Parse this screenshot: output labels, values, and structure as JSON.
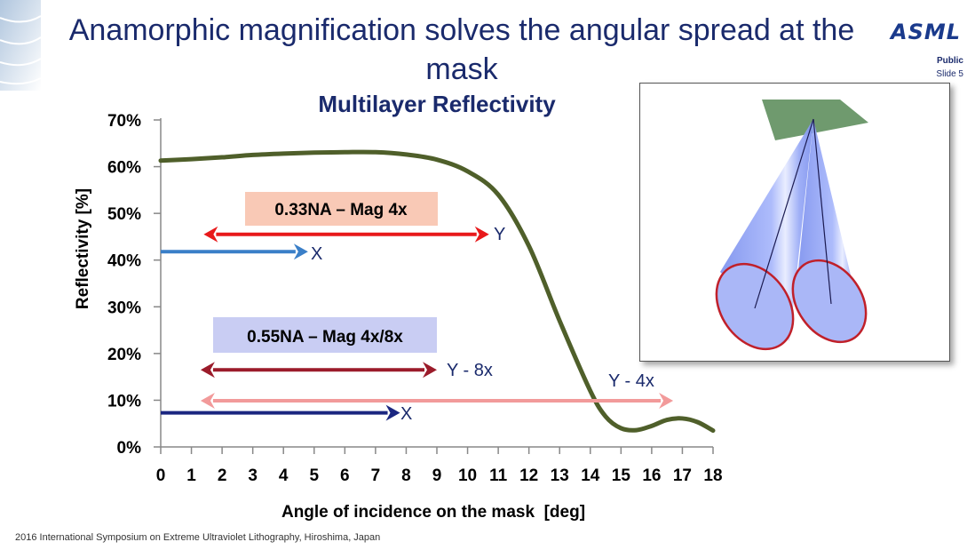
{
  "slide": {
    "title": "Anamorphic magnification solves the angular spread at the mask",
    "classification": "Public",
    "slide_number": "Slide 5",
    "logo_text": "ASML",
    "footer": "2016 International Symposium on Extreme Ultraviolet Lithography, Hiroshima, Japan"
  },
  "colors": {
    "title": "#1a2a6c",
    "curve": "#4f5f2a",
    "red_arrow": "#e8191b",
    "blue_arrow": "#3a7fc8",
    "darkred_arrow": "#9b1b2a",
    "pink_arrow": "#f29a9a",
    "navy_arrow": "#1a2680",
    "label_033_bg": "#f9c9b6",
    "label_055_bg": "#c9cdf3",
    "mask_green": "#6f9a6e",
    "cone_blue": "#8aa0f5",
    "ellipse_red": "#c0202a"
  },
  "chart_data": {
    "type": "line",
    "title": "Multilayer Reflectivity",
    "xlabel": "Angle of incidence on the mask  [deg]",
    "ylabel": "Reflectivity [%]",
    "xlim": [
      0,
      18
    ],
    "ylim": [
      0,
      70
    ],
    "x_ticks": [
      "0",
      "1",
      "2",
      "3",
      "4",
      "5",
      "6",
      "7",
      "8",
      "9",
      "10",
      "11",
      "12",
      "13",
      "14",
      "15",
      "16",
      "17",
      "18"
    ],
    "y_ticks": [
      "0%",
      "10%",
      "20%",
      "30%",
      "40%",
      "50%",
      "60%",
      "70%"
    ],
    "grid": false,
    "series": [
      {
        "x": [
          0,
          1,
          2,
          3,
          4,
          5,
          6,
          7,
          8,
          9,
          10,
          11,
          12,
          13,
          14,
          14.5,
          15,
          15.5,
          16,
          16.5,
          17,
          17.5,
          18
        ],
        "y": [
          61.3,
          61.6,
          62,
          62.5,
          62.8,
          63,
          63.1,
          63.1,
          62.6,
          61.5,
          59,
          54,
          43,
          27,
          12,
          6.5,
          4,
          3.6,
          4.5,
          5.8,
          6.1,
          5.3,
          3.5
        ]
      }
    ],
    "annotations": {
      "label_033": "0.33NA – Mag 4x",
      "label_055": "0.55NA – Mag 4x/8x",
      "arrow_033_y": {
        "label": "Y",
        "from": 1.4,
        "to": 10.7,
        "y": 45.5,
        "double": true
      },
      "arrow_033_x": {
        "label": "X",
        "from": 0,
        "to": 4.8,
        "y": 41.8,
        "double": false
      },
      "arrow_055_y8": {
        "label": "Y - 8x",
        "from": 1.3,
        "to": 9.0,
        "y": 16.5,
        "double": true
      },
      "arrow_055_y4": {
        "label": "Y - 4x",
        "from": 1.3,
        "to": 16.7,
        "y": 9.9,
        "double": true
      },
      "arrow_055_x": {
        "label": "X",
        "from": 0,
        "to": 7.8,
        "y": 7.3,
        "double": false
      }
    }
  }
}
